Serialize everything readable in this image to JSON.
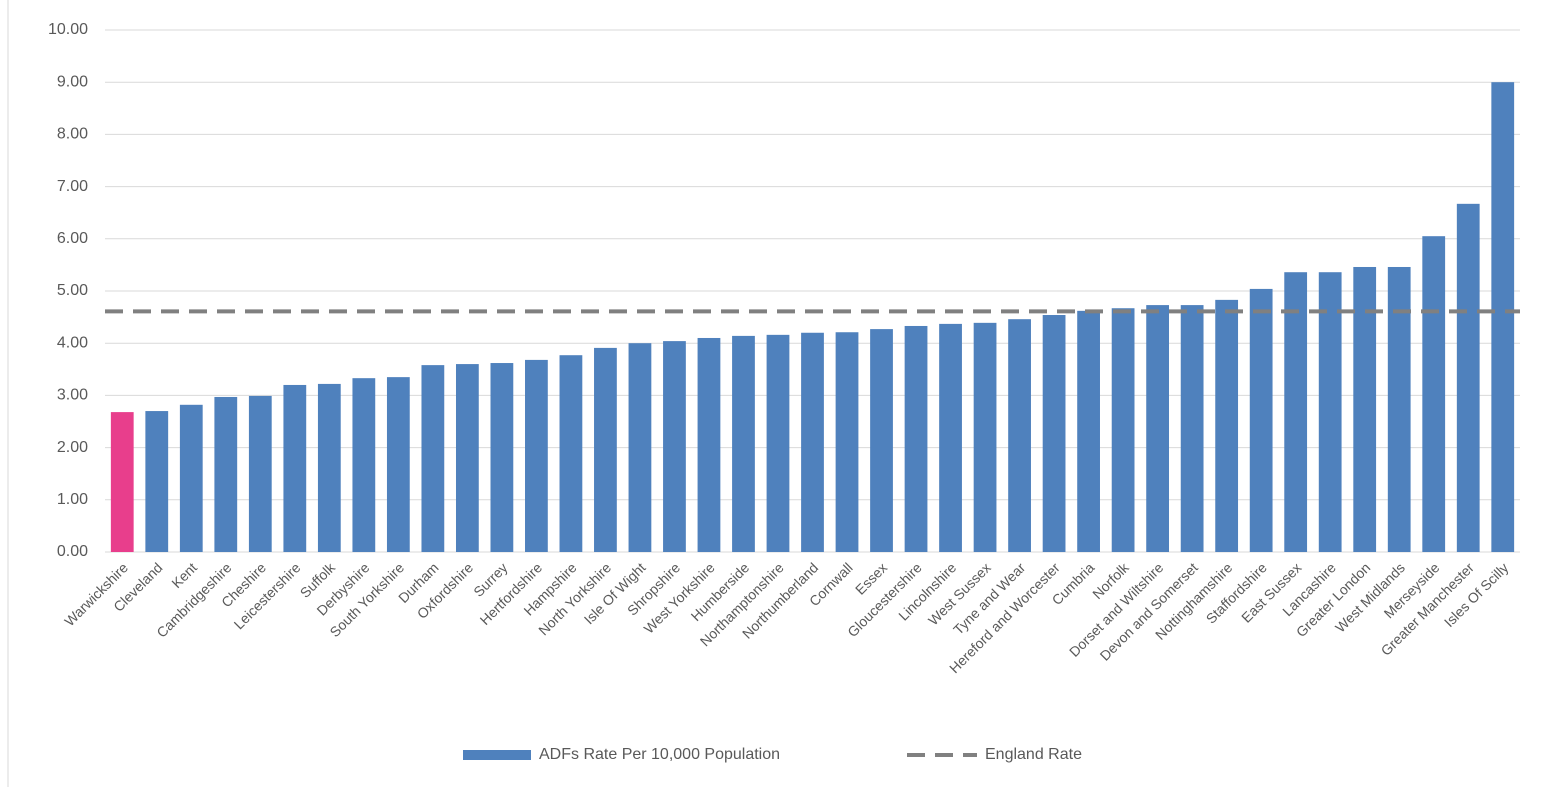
{
  "chart_data": {
    "type": "bar",
    "categories": [
      "Warwickshire",
      "Cleveland",
      "Kent",
      "Cambridgeshire",
      "Cheshire",
      "Leicestershire",
      "Suffolk",
      "Derbyshire",
      "South Yorkshire",
      "Durham",
      "Oxfordshire",
      "Surrey",
      "Hertfordshire",
      "Hampshire",
      "North Yorkshire",
      "Isle Of Wight",
      "Shropshire",
      "West Yorkshire",
      "Humberside",
      "Northamptonshire",
      "Northumberland",
      "Cornwall",
      "Essex",
      "Gloucestershire",
      "Lincolnshire",
      "West Sussex",
      "Tyne and Wear",
      "Hereford and Worcester",
      "Cumbria",
      "Norfolk",
      "Dorset and Wiltshire",
      "Devon and Somerset",
      "Nottinghamshire",
      "Staffordshire",
      "East Sussex",
      "Lancashire",
      "Greater London",
      "West Midlands",
      "Merseyside",
      "Greater Manchester",
      "Isles Of Scilly"
    ],
    "series": [
      {
        "name": "ADFs Rate Per 10,000 Population",
        "color": "#4f81bd",
        "colors": [
          "#e83e8c",
          "#4f81bd",
          "#4f81bd",
          "#4f81bd",
          "#4f81bd",
          "#4f81bd",
          "#4f81bd",
          "#4f81bd",
          "#4f81bd",
          "#4f81bd",
          "#4f81bd",
          "#4f81bd",
          "#4f81bd",
          "#4f81bd",
          "#4f81bd",
          "#4f81bd",
          "#4f81bd",
          "#4f81bd",
          "#4f81bd",
          "#4f81bd",
          "#4f81bd",
          "#4f81bd",
          "#4f81bd",
          "#4f81bd",
          "#4f81bd",
          "#4f81bd",
          "#4f81bd",
          "#4f81bd",
          "#4f81bd",
          "#4f81bd",
          "#4f81bd",
          "#4f81bd",
          "#4f81bd",
          "#4f81bd",
          "#4f81bd",
          "#4f81bd",
          "#4f81bd",
          "#4f81bd",
          "#4f81bd",
          "#4f81bd",
          "#4f81bd"
        ],
        "values": [
          2.68,
          2.7,
          2.82,
          2.97,
          2.99,
          3.2,
          3.22,
          3.33,
          3.35,
          3.58,
          3.6,
          3.62,
          3.68,
          3.77,
          3.91,
          4.0,
          4.04,
          4.1,
          4.14,
          4.16,
          4.2,
          4.21,
          4.27,
          4.33,
          4.37,
          4.39,
          4.46,
          4.54,
          4.62,
          4.67,
          4.73,
          4.73,
          4.83,
          5.04,
          5.36,
          5.36,
          5.46,
          5.46,
          6.05,
          6.67,
          9.0
        ]
      }
    ],
    "reference_line": {
      "name": "England Rate",
      "color": "#808080",
      "value": 4.61,
      "dashed": true
    },
    "ylim": [
      0,
      10
    ],
    "yticks": [
      {
        "value": 0,
        "label": "0.00"
      },
      {
        "value": 1,
        "label": "1.00"
      },
      {
        "value": 2,
        "label": "2.00"
      },
      {
        "value": 3,
        "label": "3.00"
      },
      {
        "value": 4,
        "label": "4.00"
      },
      {
        "value": 5,
        "label": "5.00"
      },
      {
        "value": 6,
        "label": "6.00"
      },
      {
        "value": 7,
        "label": "7.00"
      },
      {
        "value": 8,
        "label": "8.00"
      },
      {
        "value": 9,
        "label": "9.00"
      },
      {
        "value": 10,
        "label": "10.00"
      }
    ],
    "grid": true,
    "legend": "bottom"
  }
}
